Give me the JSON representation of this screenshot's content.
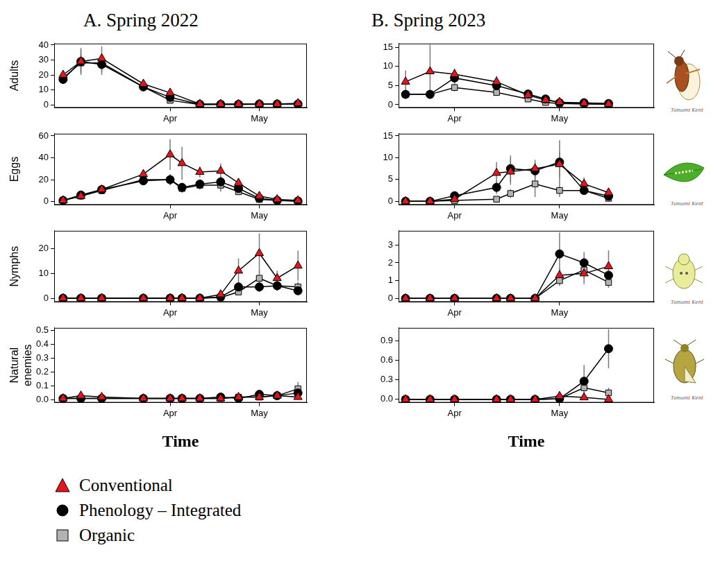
{
  "figure": {
    "legend": "bottom",
    "credit": "Tomomi Kent"
  },
  "chart_data": [
    {
      "type": "line",
      "title": "A. Spring 2022",
      "y_label": "Adults",
      "grid": false,
      "x": [
        55,
        61,
        68,
        82,
        91,
        101,
        108,
        114,
        121,
        127,
        134
      ],
      "xlim": [
        52,
        137
      ],
      "xticks": [
        {
          "value": 91,
          "label": "Apr"
        },
        {
          "value": 121,
          "label": "May"
        }
      ],
      "ylim": [
        -2,
        41
      ],
      "yticks": [
        0,
        10,
        20,
        30,
        40
      ],
      "series": [
        {
          "name": "Conventional",
          "color": "#e8141c",
          "marker": "triangle",
          "values": [
            20,
            29,
            31,
            14,
            8,
            0.5,
            0.5,
            0.5,
            0.5,
            0.5,
            1
          ],
          "errors": [
            3,
            9,
            8,
            3,
            2,
            0.3,
            0.3,
            0.3,
            0.3,
            0.3,
            0.5
          ]
        },
        {
          "name": "Phenology – Integrated",
          "color": "#000000",
          "marker": "circle",
          "values": [
            17,
            29,
            27,
            12,
            5,
            0.3,
            0.3,
            0.3,
            0.5,
            0.5,
            0.5
          ],
          "errors": [
            3,
            8,
            7,
            3,
            2,
            0.2,
            0.2,
            0.2,
            0.3,
            0.3,
            0.3
          ]
        },
        {
          "name": "Organic",
          "color": "#b3b3b3",
          "marker": "square",
          "values": [
            18,
            28,
            28,
            12,
            3,
            0.2,
            0.3,
            0.3,
            0.3,
            0.5,
            0.5
          ],
          "errors": [
            4,
            6,
            6,
            2,
            2,
            0.2,
            0.2,
            0.2,
            0.2,
            0.3,
            0.3
          ]
        }
      ]
    },
    {
      "type": "line",
      "title": "B. Spring 2023",
      "grid": false,
      "x": [
        77,
        84,
        91,
        103,
        112,
        117,
        121,
        128,
        135
      ],
      "xlim": [
        75,
        148
      ],
      "xticks": [
        {
          "value": 91,
          "label": "Apr"
        },
        {
          "value": 121,
          "label": "May"
        }
      ],
      "ylim": [
        -0.8,
        16
      ],
      "yticks": [
        0,
        5,
        10,
        15
      ],
      "series": [
        {
          "name": "Conventional",
          "color": "#e8141c",
          "marker": "triangle",
          "values": [
            6,
            8.7,
            8,
            6,
            2.5,
            1.2,
            0.7,
            0.4,
            0.2
          ],
          "errors": [
            3,
            7,
            1.5,
            1.5,
            0.5,
            0.5,
            0.3,
            0.2,
            0.1
          ]
        },
        {
          "name": "Phenology – Integrated",
          "color": "#000000",
          "marker": "circle",
          "values": [
            2.7,
            2.7,
            7,
            5,
            2.8,
            1.5,
            0.5,
            0.5,
            0.3
          ],
          "errors": [
            1,
            1.2,
            1.5,
            1.2,
            0.6,
            0.4,
            0.3,
            0.2,
            0.1
          ]
        },
        {
          "name": "Organic",
          "color": "#b3b3b3",
          "marker": "square",
          "values": [
            2.7,
            2.7,
            4.5,
            3.2,
            1.5,
            0.6,
            0.3,
            0.2,
            0.1
          ],
          "errors": [
            1,
            1,
            1,
            0.8,
            0.4,
            0.3,
            0.2,
            0.1,
            0.1
          ]
        }
      ]
    },
    {
      "type": "line",
      "y_label": "Eggs",
      "grid": false,
      "x": [
        55,
        61,
        68,
        82,
        91,
        95,
        101,
        108,
        114,
        121,
        127,
        134
      ],
      "xlim": [
        52,
        137
      ],
      "xticks": [
        {
          "value": 91,
          "label": "Apr"
        },
        {
          "value": 121,
          "label": "May"
        }
      ],
      "ylim": [
        -3,
        62
      ],
      "yticks": [
        0,
        20,
        40,
        60
      ],
      "series": [
        {
          "name": "Conventional",
          "color": "#e8141c",
          "marker": "triangle",
          "values": [
            1,
            5,
            11,
            25,
            43,
            35,
            27,
            28,
            17,
            5,
            2,
            1
          ],
          "errors": [
            1,
            2,
            3,
            4,
            14,
            15,
            5,
            7,
            4,
            2,
            1,
            1
          ]
        },
        {
          "name": "Phenology – Integrated",
          "color": "#000000",
          "marker": "circle",
          "values": [
            1,
            6,
            11,
            19,
            20,
            13,
            16,
            18,
            12,
            3,
            1,
            0.5
          ],
          "errors": [
            1,
            2,
            3,
            3,
            5,
            4,
            4,
            5,
            4,
            1,
            1,
            0.5
          ]
        },
        {
          "name": "Organic",
          "color": "#b3b3b3",
          "marker": "square",
          "values": [
            1,
            5,
            10,
            20,
            20,
            12,
            15,
            15,
            9,
            2,
            1,
            0.5
          ],
          "errors": [
            1,
            2,
            3,
            3,
            5,
            4,
            4,
            6,
            3,
            1,
            1,
            0.5
          ]
        }
      ]
    },
    {
      "type": "line",
      "grid": false,
      "x": [
        77,
        84,
        91,
        103,
        107,
        114,
        121,
        128,
        135
      ],
      "xlim": [
        75,
        148
      ],
      "xticks": [
        {
          "value": 91,
          "label": "Apr"
        },
        {
          "value": 121,
          "label": "May"
        }
      ],
      "ylim": [
        -0.8,
        15.5
      ],
      "yticks": [
        0,
        5,
        10,
        15
      ],
      "series": [
        {
          "name": "Conventional",
          "color": "#e8141c",
          "marker": "triangle",
          "values": [
            0,
            0,
            0.5,
            6.5,
            6.8,
            7.5,
            8.5,
            4,
            2
          ],
          "errors": [
            0,
            0,
            0.3,
            2.5,
            3,
            2,
            3,
            1.5,
            1
          ]
        },
        {
          "name": "Phenology – Integrated",
          "color": "#000000",
          "marker": "circle",
          "values": [
            0,
            0,
            1.3,
            3.2,
            7.5,
            7,
            9,
            2.5,
            1.2
          ],
          "errors": [
            0,
            0,
            0.5,
            1.5,
            3,
            2,
            5,
            1,
            0.5
          ]
        },
        {
          "name": "Organic",
          "color": "#b3b3b3",
          "marker": "square",
          "values": [
            0,
            0,
            0.2,
            0.5,
            1.8,
            4,
            2.5,
            2.5,
            0.7
          ],
          "errors": [
            0,
            0,
            0.1,
            0.4,
            1,
            3,
            1.5,
            1,
            0.4
          ]
        }
      ]
    },
    {
      "type": "line",
      "y_label": "Nymphs",
      "grid": false,
      "x": [
        55,
        61,
        68,
        82,
        91,
        95,
        101,
        108,
        114,
        121,
        127,
        134
      ],
      "xlim": [
        52,
        137
      ],
      "xticks": [
        {
          "value": 91,
          "label": "Apr"
        },
        {
          "value": 121,
          "label": "May"
        }
      ],
      "ylim": [
        -1.5,
        27
      ],
      "yticks": [
        0,
        10,
        20
      ],
      "series": [
        {
          "name": "Conventional",
          "color": "#e8141c",
          "marker": "triangle",
          "values": [
            0,
            0,
            0,
            0,
            0,
            0,
            0,
            1.5,
            11,
            18,
            8,
            13
          ],
          "errors": [
            0,
            0,
            0,
            0,
            0,
            0,
            0,
            0.8,
            5,
            8,
            3,
            6
          ]
        },
        {
          "name": "Phenology – Integrated",
          "color": "#000000",
          "marker": "circle",
          "values": [
            0,
            0,
            0,
            0,
            0,
            0,
            0,
            0.5,
            4.5,
            4.5,
            5,
            3
          ],
          "errors": [
            0,
            0,
            0,
            0,
            0,
            0,
            0,
            0.3,
            2,
            2,
            2,
            1
          ]
        },
        {
          "name": "Organic",
          "color": "#b3b3b3",
          "marker": "square",
          "values": [
            0,
            0,
            0,
            0,
            0,
            0,
            0,
            0.3,
            2.5,
            8,
            5,
            4.5
          ],
          "errors": [
            0,
            0,
            0,
            0,
            0,
            0,
            0,
            0.2,
            1,
            3,
            2,
            2
          ]
        }
      ]
    },
    {
      "type": "line",
      "grid": false,
      "x": [
        77,
        84,
        91,
        103,
        107,
        114,
        121,
        128,
        135
      ],
      "xlim": [
        75,
        148
      ],
      "xticks": [
        {
          "value": 91,
          "label": "Apr"
        },
        {
          "value": 121,
          "label": "May"
        }
      ],
      "ylim": [
        -0.2,
        3.8
      ],
      "yticks": [
        0,
        1,
        2,
        3
      ],
      "series": [
        {
          "name": "Conventional",
          "color": "#e8141c",
          "marker": "triangle",
          "values": [
            0,
            0,
            0,
            0,
            0,
            0,
            1.3,
            1.4,
            1.8
          ],
          "errors": [
            0,
            0,
            0,
            0,
            0,
            0,
            0.4,
            0.6,
            0.9
          ]
        },
        {
          "name": "Phenology – Integrated",
          "color": "#000000",
          "marker": "circle",
          "values": [
            0,
            0,
            0,
            0,
            0,
            0,
            2.5,
            2,
            1.3
          ],
          "errors": [
            0,
            0,
            0,
            0,
            0,
            0,
            1.2,
            0.6,
            0.4
          ]
        },
        {
          "name": "Organic",
          "color": "#b3b3b3",
          "marker": "square",
          "values": [
            0,
            0,
            0,
            0,
            0,
            0,
            1,
            1.6,
            0.9
          ],
          "errors": [
            0,
            0,
            0,
            0,
            0,
            0,
            0.3,
            0.5,
            0.3
          ]
        }
      ]
    },
    {
      "type": "line",
      "y_label": [
        "Natural",
        "enemies"
      ],
      "x_label": "Time",
      "grid": false,
      "x": [
        55,
        61,
        68,
        82,
        91,
        95,
        101,
        108,
        114,
        121,
        127,
        134
      ],
      "xlim": [
        52,
        137
      ],
      "xticks": [
        {
          "value": 91,
          "label": "Apr"
        },
        {
          "value": 121,
          "label": "May"
        }
      ],
      "ylim": [
        -0.02,
        0.52
      ],
      "yticks": [
        {
          "value": 0,
          "label": "0.0"
        },
        {
          "value": 0.1,
          "label": "0.1"
        },
        {
          "value": 0.2,
          "label": "0.2"
        },
        {
          "value": 0.3,
          "label": "0.3"
        },
        {
          "value": 0.4,
          "label": "0.4"
        },
        {
          "value": 0.5,
          "label": "0.5"
        }
      ],
      "series": [
        {
          "name": "Conventional",
          "color": "#e8141c",
          "marker": "triangle",
          "values": [
            0.01,
            0.03,
            0.02,
            0.01,
            0.01,
            0.01,
            0.01,
            0.01,
            0.02,
            0.02,
            0.03,
            0.02
          ],
          "errors": [
            0.01,
            0.01,
            0.01,
            0.01,
            0.01,
            0.01,
            0.01,
            0.01,
            0.01,
            0.01,
            0.01,
            0.01
          ]
        },
        {
          "name": "Phenology – Integrated",
          "color": "#000000",
          "marker": "circle",
          "values": [
            0.01,
            0.01,
            0.01,
            0.01,
            0.01,
            0.01,
            0.01,
            0.02,
            0.01,
            0.04,
            0.03,
            0.05
          ],
          "errors": [
            0.01,
            0.01,
            0.01,
            0.01,
            0.01,
            0.01,
            0.01,
            0.01,
            0.01,
            0.01,
            0.01,
            0.02
          ]
        },
        {
          "name": "Organic",
          "color": "#b3b3b3",
          "marker": "square",
          "values": [
            0.01,
            0.01,
            0.01,
            0.01,
            0.01,
            0.01,
            0.01,
            0.01,
            0.02,
            0.02,
            0.03,
            0.08
          ],
          "errors": [
            0.01,
            0.01,
            0.01,
            0.01,
            0.01,
            0.01,
            0.01,
            0.01,
            0.01,
            0.01,
            0.01,
            0.05
          ]
        }
      ]
    },
    {
      "type": "line",
      "x_label": "Time",
      "grid": false,
      "x": [
        77,
        84,
        91,
        103,
        107,
        114,
        121,
        128,
        135
      ],
      "xlim": [
        75,
        148
      ],
      "xticks": [
        {
          "value": 91,
          "label": "Apr"
        },
        {
          "value": 121,
          "label": "May"
        }
      ],
      "ylim": [
        -0.05,
        1.1
      ],
      "yticks": [
        {
          "value": 0,
          "label": "0.0"
        },
        {
          "value": 0.3,
          "label": "0.3"
        },
        {
          "value": 0.6,
          "label": "0.6"
        },
        {
          "value": 0.9,
          "label": "0.9"
        }
      ],
      "series": [
        {
          "name": "Conventional",
          "color": "#e8141c",
          "marker": "triangle",
          "values": [
            0,
            0,
            0,
            0,
            0,
            0,
            0.05,
            0.03,
            0
          ],
          "errors": [
            0,
            0,
            0,
            0,
            0,
            0,
            0.03,
            0.02,
            0
          ]
        },
        {
          "name": "Phenology – Integrated",
          "color": "#000000",
          "marker": "circle",
          "values": [
            0,
            0,
            0,
            0,
            0,
            0,
            0.01,
            0.28,
            0.78
          ],
          "errors": [
            0,
            0,
            0,
            0,
            0,
            0,
            0.01,
            0.25,
            0.3
          ]
        },
        {
          "name": "Organic",
          "color": "#b3b3b3",
          "marker": "square",
          "values": [
            0,
            0,
            0,
            0,
            0,
            0,
            0.01,
            0.18,
            0.1
          ],
          "errors": [
            0,
            0,
            0,
            0,
            0,
            0,
            0.01,
            0.15,
            0.08
          ]
        }
      ]
    }
  ]
}
